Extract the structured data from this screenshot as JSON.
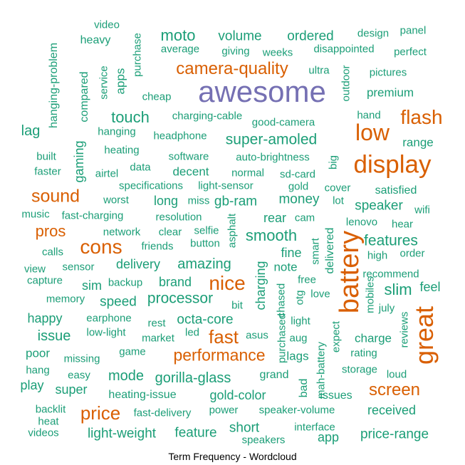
{
  "caption": "Term Frequency - Wordcloud",
  "colors": {
    "top": "#7570b3",
    "high": "#d95f02",
    "base": "#1b9e77"
  },
  "words": [
    {
      "text": "awesome",
      "tier": "top"
    },
    {
      "text": "battery",
      "tier": "high"
    },
    {
      "text": "great",
      "tier": "high"
    },
    {
      "text": "display",
      "tier": "high"
    },
    {
      "text": "low",
      "tier": "high"
    },
    {
      "text": "camera-quality",
      "tier": "high"
    },
    {
      "text": "flash",
      "tier": "high"
    },
    {
      "text": "sound",
      "tier": "high"
    },
    {
      "text": "cons",
      "tier": "high"
    },
    {
      "text": "pros",
      "tier": "high"
    },
    {
      "text": "nice",
      "tier": "high"
    },
    {
      "text": "fast",
      "tier": "high"
    },
    {
      "text": "performance",
      "tier": "high"
    },
    {
      "text": "price",
      "tier": "high"
    },
    {
      "text": "screen",
      "tier": "high"
    },
    {
      "text": "moto",
      "tier": "base"
    },
    {
      "text": "volume",
      "tier": "base"
    },
    {
      "text": "ordered",
      "tier": "base"
    },
    {
      "text": "design",
      "tier": "base"
    },
    {
      "text": "panel",
      "tier": "base"
    },
    {
      "text": "video",
      "tier": "base"
    },
    {
      "text": "heavy",
      "tier": "base"
    },
    {
      "text": "hanging-problem",
      "tier": "base"
    },
    {
      "text": "purchase",
      "tier": "base"
    },
    {
      "text": "average",
      "tier": "base"
    },
    {
      "text": "giving",
      "tier": "base"
    },
    {
      "text": "weeks",
      "tier": "base"
    },
    {
      "text": "disappointed",
      "tier": "base"
    },
    {
      "text": "perfect",
      "tier": "base"
    },
    {
      "text": "compared",
      "tier": "base"
    },
    {
      "text": "service",
      "tier": "base"
    },
    {
      "text": "apps",
      "tier": "base"
    },
    {
      "text": "ultra",
      "tier": "base"
    },
    {
      "text": "outdoor",
      "tier": "base"
    },
    {
      "text": "pictures",
      "tier": "base"
    },
    {
      "text": "cheap",
      "tier": "base"
    },
    {
      "text": "premium",
      "tier": "base"
    },
    {
      "text": "touch",
      "tier": "base"
    },
    {
      "text": "charging-cable",
      "tier": "base"
    },
    {
      "text": "good-camera",
      "tier": "base"
    },
    {
      "text": "hand",
      "tier": "base"
    },
    {
      "text": "lag",
      "tier": "base"
    },
    {
      "text": "gaming",
      "tier": "base"
    },
    {
      "text": "hanging",
      "tier": "base"
    },
    {
      "text": "headphone",
      "tier": "base"
    },
    {
      "text": "super-amoled",
      "tier": "base"
    },
    {
      "text": "range",
      "tier": "base"
    },
    {
      "text": "built",
      "tier": "base"
    },
    {
      "text": "heating",
      "tier": "base"
    },
    {
      "text": "software",
      "tier": "base"
    },
    {
      "text": "auto-brightness",
      "tier": "base"
    },
    {
      "text": "big",
      "tier": "base"
    },
    {
      "text": "faster",
      "tier": "base"
    },
    {
      "text": "airtel",
      "tier": "base"
    },
    {
      "text": "data",
      "tier": "base"
    },
    {
      "text": "decent",
      "tier": "base"
    },
    {
      "text": "normal",
      "tier": "base"
    },
    {
      "text": "sd-card",
      "tier": "base"
    },
    {
      "text": "specifications",
      "tier": "base"
    },
    {
      "text": "light-sensor",
      "tier": "base"
    },
    {
      "text": "gold",
      "tier": "base"
    },
    {
      "text": "cover",
      "tier": "base"
    },
    {
      "text": "satisfied",
      "tier": "base"
    },
    {
      "text": "worst",
      "tier": "base"
    },
    {
      "text": "long",
      "tier": "base"
    },
    {
      "text": "miss",
      "tier": "base"
    },
    {
      "text": "gb-ram",
      "tier": "base"
    },
    {
      "text": "money",
      "tier": "base"
    },
    {
      "text": "lot",
      "tier": "base"
    },
    {
      "text": "speaker",
      "tier": "base"
    },
    {
      "text": "music",
      "tier": "base"
    },
    {
      "text": "fast-charging",
      "tier": "base"
    },
    {
      "text": "resolution",
      "tier": "base"
    },
    {
      "text": "asphalt",
      "tier": "base"
    },
    {
      "text": "rear",
      "tier": "base"
    },
    {
      "text": "cam",
      "tier": "base"
    },
    {
      "text": "wifi",
      "tier": "base"
    },
    {
      "text": "lenovo",
      "tier": "base"
    },
    {
      "text": "hear",
      "tier": "base"
    },
    {
      "text": "network",
      "tier": "base"
    },
    {
      "text": "clear",
      "tier": "base"
    },
    {
      "text": "selfie",
      "tier": "base"
    },
    {
      "text": "smooth",
      "tier": "base"
    },
    {
      "text": "delivered",
      "tier": "base"
    },
    {
      "text": "features",
      "tier": "base"
    },
    {
      "text": "calls",
      "tier": "base"
    },
    {
      "text": "friends",
      "tier": "base"
    },
    {
      "text": "button",
      "tier": "base"
    },
    {
      "text": "fine",
      "tier": "base"
    },
    {
      "text": "smart",
      "tier": "base"
    },
    {
      "text": "high",
      "tier": "base"
    },
    {
      "text": "order",
      "tier": "base"
    },
    {
      "text": "view",
      "tier": "base"
    },
    {
      "text": "sensor",
      "tier": "base"
    },
    {
      "text": "delivery",
      "tier": "base"
    },
    {
      "text": "amazing",
      "tier": "base"
    },
    {
      "text": "charging",
      "tier": "base"
    },
    {
      "text": "note",
      "tier": "base"
    },
    {
      "text": "capture",
      "tier": "base"
    },
    {
      "text": "backup",
      "tier": "base"
    },
    {
      "text": "brand",
      "tier": "base"
    },
    {
      "text": "free",
      "tier": "base"
    },
    {
      "text": "recommend",
      "tier": "base"
    },
    {
      "text": "sim",
      "tier": "base"
    },
    {
      "text": "slim",
      "tier": "base"
    },
    {
      "text": "feel",
      "tier": "base"
    },
    {
      "text": "memory",
      "tier": "base"
    },
    {
      "text": "speed",
      "tier": "base"
    },
    {
      "text": "processor",
      "tier": "base"
    },
    {
      "text": "bit",
      "tier": "base"
    },
    {
      "text": "chased",
      "tier": "base"
    },
    {
      "text": "otg",
      "tier": "base"
    },
    {
      "text": "love",
      "tier": "base"
    },
    {
      "text": "mobiles",
      "tier": "base"
    },
    {
      "text": "july",
      "tier": "base"
    },
    {
      "text": "happy",
      "tier": "base"
    },
    {
      "text": "earphone",
      "tier": "base"
    },
    {
      "text": "rest",
      "tier": "base"
    },
    {
      "text": "octa-core",
      "tier": "base"
    },
    {
      "text": "light",
      "tier": "base"
    },
    {
      "text": "reviews",
      "tier": "base"
    },
    {
      "text": "issue",
      "tier": "base"
    },
    {
      "text": "low-light",
      "tier": "base"
    },
    {
      "text": "market",
      "tier": "base"
    },
    {
      "text": "led",
      "tier": "base"
    },
    {
      "text": "asus",
      "tier": "base"
    },
    {
      "text": "purchased",
      "tier": "base"
    },
    {
      "text": "aug",
      "tier": "base"
    },
    {
      "text": "expect",
      "tier": "base"
    },
    {
      "text": "charge",
      "tier": "base"
    },
    {
      "text": "poor",
      "tier": "base"
    },
    {
      "text": "game",
      "tier": "base"
    },
    {
      "text": "lags",
      "tier": "base"
    },
    {
      "text": "rating",
      "tier": "base"
    },
    {
      "text": "missing",
      "tier": "base"
    },
    {
      "text": "hang",
      "tier": "base"
    },
    {
      "text": "easy",
      "tier": "base"
    },
    {
      "text": "mode",
      "tier": "base"
    },
    {
      "text": "gorilla-glass",
      "tier": "base"
    },
    {
      "text": "grand",
      "tier": "base"
    },
    {
      "text": "mah-battery",
      "tier": "base"
    },
    {
      "text": "storage",
      "tier": "base"
    },
    {
      "text": "loud",
      "tier": "base"
    },
    {
      "text": "play",
      "tier": "base"
    },
    {
      "text": "super",
      "tier": "base"
    },
    {
      "text": "bad",
      "tier": "base"
    },
    {
      "text": "heating-issue",
      "tier": "base"
    },
    {
      "text": "gold-color",
      "tier": "base"
    },
    {
      "text": "issues",
      "tier": "base"
    },
    {
      "text": "backlit",
      "tier": "base"
    },
    {
      "text": "fast-delivery",
      "tier": "base"
    },
    {
      "text": "power",
      "tier": "base"
    },
    {
      "text": "speaker-volume",
      "tier": "base"
    },
    {
      "text": "received",
      "tier": "base"
    },
    {
      "text": "heat",
      "tier": "base"
    },
    {
      "text": "short",
      "tier": "base"
    },
    {
      "text": "interface",
      "tier": "base"
    },
    {
      "text": "videos",
      "tier": "base"
    },
    {
      "text": "light-weight",
      "tier": "base"
    },
    {
      "text": "feature",
      "tier": "base"
    },
    {
      "text": "speakers",
      "tier": "base"
    },
    {
      "text": "app",
      "tier": "base"
    },
    {
      "text": "price-range",
      "tier": "base"
    }
  ]
}
